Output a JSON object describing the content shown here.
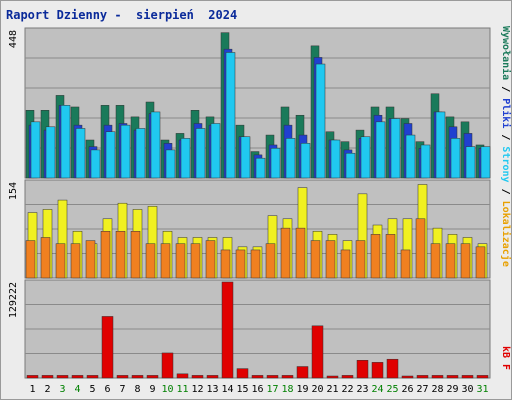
{
  "header": {
    "title": "Raport Dzienny -  sierpień  2024"
  },
  "chart_data": [
    {
      "type": "bar",
      "panel": "top",
      "ylabel_tick": "448",
      "ylim": [
        0,
        448
      ],
      "categories": [
        "1",
        "2",
        "3",
        "4",
        "5",
        "6",
        "7",
        "8",
        "9",
        "10",
        "11",
        "12",
        "13",
        "14",
        "15",
        "16",
        "17",
        "18",
        "19",
        "20",
        "21",
        "22",
        "23",
        "24",
        "25",
        "26",
        "27",
        "28",
        "29",
        "30",
        "31"
      ],
      "series": [
        {
          "name": "Wywołania",
          "color": "#1a7a5a",
          "values": [
            205,
            205,
            250,
            215,
            115,
            220,
            220,
            185,
            230,
            115,
            135,
            205,
            185,
            440,
            160,
            80,
            130,
            215,
            190,
            400,
            140,
            110,
            145,
            215,
            215,
            180,
            110,
            255,
            185,
            170,
            100
          ]
        },
        {
          "name": "Pliki",
          "color": "#2040d0",
          "values": [
            160,
            145,
            220,
            160,
            95,
            160,
            165,
            145,
            195,
            105,
            115,
            165,
            160,
            390,
            125,
            70,
            100,
            160,
            130,
            365,
            115,
            85,
            120,
            190,
            180,
            165,
            90,
            200,
            155,
            135,
            90
          ]
        },
        {
          "name": "Strony",
          "color": "#20c8f0",
          "values": [
            170,
            155,
            220,
            150,
            85,
            140,
            160,
            150,
            200,
            85,
            120,
            150,
            165,
            380,
            125,
            60,
            90,
            120,
            105,
            345,
            115,
            75,
            125,
            170,
            180,
            130,
            100,
            200,
            120,
            95,
            95
          ]
        }
      ]
    },
    {
      "type": "bar",
      "panel": "middle",
      "ylabel_tick": "154",
      "ylim": [
        0,
        154
      ],
      "categories": [
        "1",
        "2",
        "3",
        "4",
        "5",
        "6",
        "7",
        "8",
        "9",
        "10",
        "11",
        "12",
        "13",
        "14",
        "15",
        "16",
        "17",
        "18",
        "19",
        "20",
        "21",
        "22",
        "23",
        "24",
        "25",
        "26",
        "27",
        "28",
        "29",
        "30",
        "31"
      ],
      "series": [
        {
          "name": "Lokalizacje",
          "color": "#f0f020",
          "values": [
            105,
            110,
            125,
            75,
            55,
            95,
            120,
            110,
            115,
            75,
            65,
            65,
            65,
            65,
            50,
            50,
            100,
            95,
            145,
            75,
            70,
            60,
            135,
            85,
            95,
            95,
            150,
            80,
            70,
            65,
            55
          ]
        },
        {
          "name": "Odwiedziny",
          "color": "#f08020",
          "values": [
            60,
            65,
            55,
            55,
            60,
            75,
            75,
            75,
            55,
            55,
            55,
            55,
            60,
            45,
            45,
            45,
            55,
            80,
            80,
            60,
            60,
            45,
            60,
            70,
            70,
            45,
            95,
            55,
            55,
            55,
            50
          ]
        }
      ]
    },
    {
      "type": "bar",
      "panel": "bottom",
      "ylabel_tick": "129222",
      "ylim": [
        0,
        184000
      ],
      "categories": [
        "1",
        "2",
        "3",
        "4",
        "5",
        "6",
        "7",
        "8",
        "9",
        "10",
        "11",
        "12",
        "13",
        "14",
        "15",
        "16",
        "17",
        "18",
        "19",
        "20",
        "21",
        "22",
        "23",
        "24",
        "25",
        "26",
        "27",
        "28",
        "29",
        "30",
        "31"
      ],
      "series": [
        {
          "name": "kB F",
          "color": "#e00000",
          "values": [
            5000,
            5000,
            5000,
            5000,
            5000,
            118000,
            5000,
            5000,
            5000,
            48000,
            8000,
            5000,
            5000,
            184000,
            18000,
            5000,
            5000,
            5000,
            22000,
            100000,
            2000,
            5000,
            34000,
            30000,
            36000,
            2000,
            5000,
            5000,
            5000,
            5000,
            5000
          ]
        }
      ]
    }
  ],
  "legend_right": [
    {
      "text": "Wywołania",
      "color": "#1a7a5a"
    },
    {
      "text": " / ",
      "color": "#000000"
    },
    {
      "text": "Pliki",
      "color": "#2040d0"
    },
    {
      "text": " / ",
      "color": "#000000"
    },
    {
      "text": "Strony",
      "color": "#20c8f0"
    },
    {
      "text": " / ",
      "color": "#000000"
    },
    {
      "text": "Lokalizacje",
      "color": "#e8a000"
    }
  ],
  "legend_bottom": {
    "text": "kB F",
    "color": "#e00000"
  },
  "weekend_days": [
    "3",
    "4",
    "10",
    "11",
    "17",
    "18",
    "24",
    "25",
    "31"
  ],
  "colors": {
    "weekday_label": "#000000",
    "weekend_label": "#008000",
    "panel_bg": "#c0c0c0",
    "grid": "#8a8a8a"
  }
}
